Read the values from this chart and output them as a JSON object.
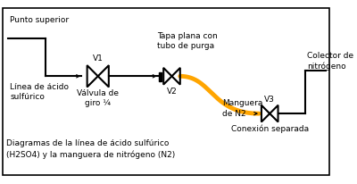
{
  "bg_color": "#ffffff",
  "line_color": "#000000",
  "hose_color": "#FFA500",
  "labels": {
    "punto_superior": "Punto superior",
    "linea_acido": "Línea de ácido\nsulfúrico",
    "valvula": "Válvula de\ngiro ¼",
    "v1": "V1",
    "tapa": "Tapa plana con\ntubo de purga",
    "v2": "V2",
    "manguera": "Manguera\nde N2",
    "colector": "Colector de\nnitrógeno",
    "v3": "V3",
    "conexion": "Conexión separada",
    "title": "Diagramas de la línea de ácido sulfúrico\n(H2SO4) y la manguera de nitrógeno (N2)"
  },
  "font_size": 6.5
}
